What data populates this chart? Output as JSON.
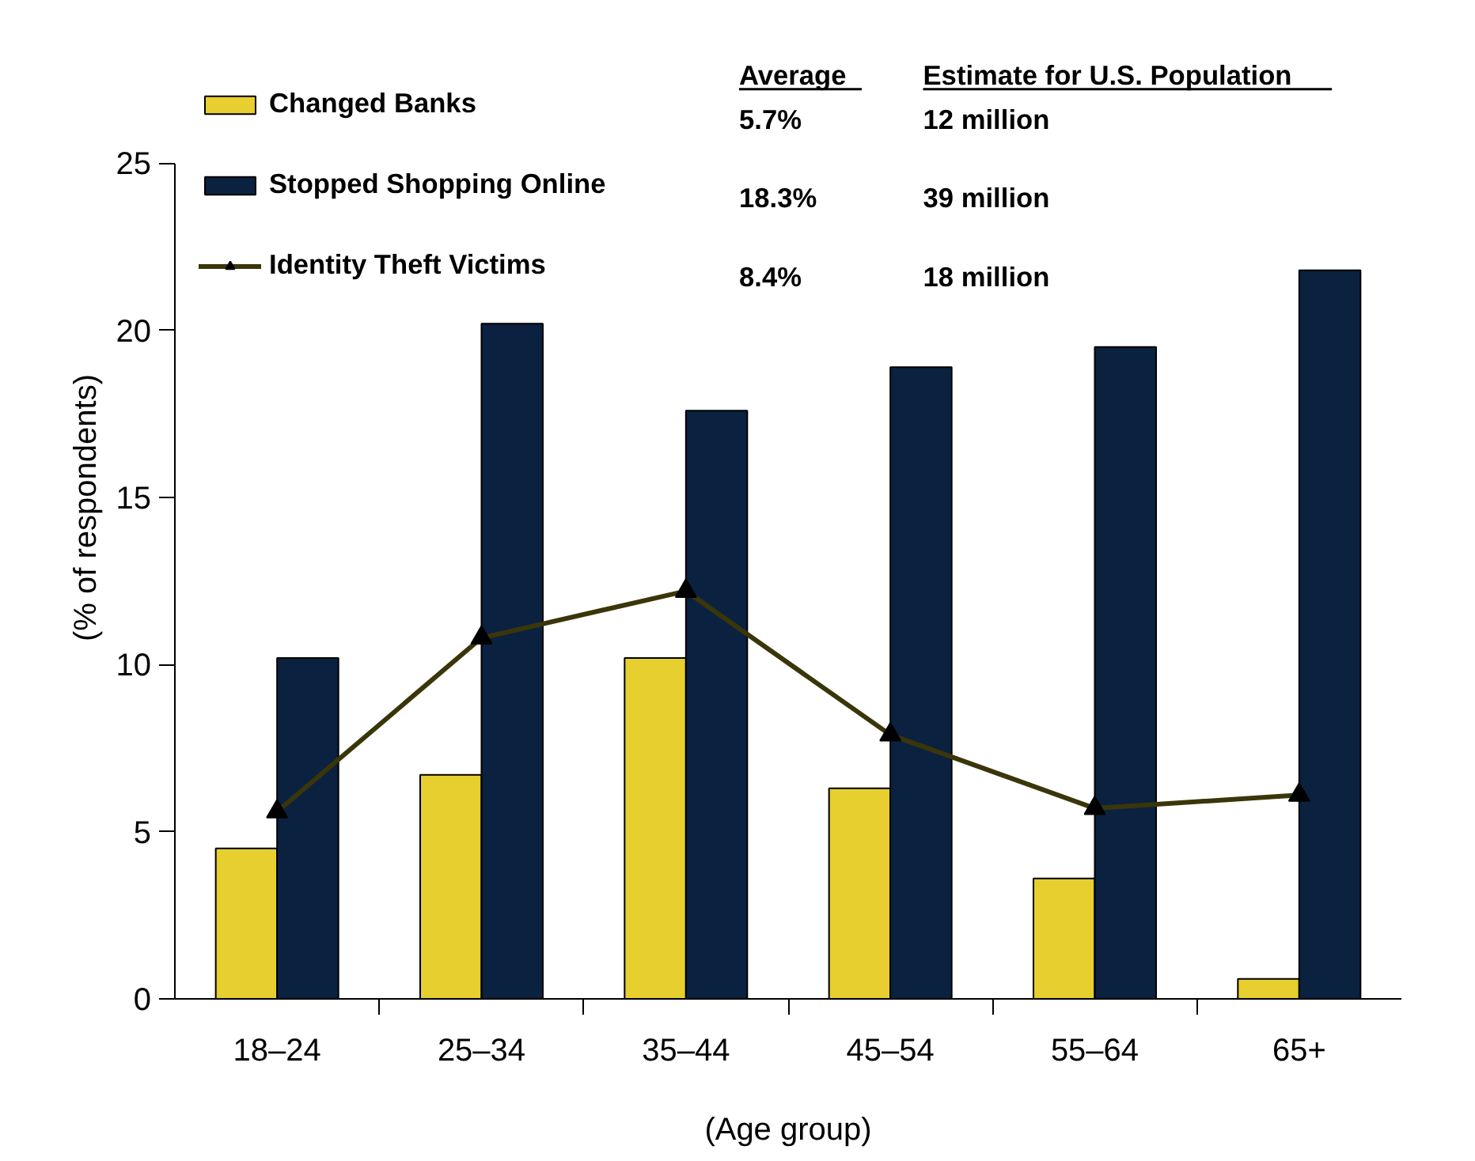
{
  "chart_data": {
    "type": "bar",
    "xlabel": "(Age group)",
    "ylabel": "(% of respondents)",
    "categories": [
      "18–24",
      "25–34",
      "35–44",
      "45–54",
      "55–64",
      "65+"
    ],
    "series": [
      {
        "name": "Changed Banks",
        "color": "#e6cf2e",
        "values": [
          4.5,
          6.7,
          10.2,
          6.3,
          3.6,
          0.6
        ]
      },
      {
        "name": "Stopped Shopping Online",
        "color": "#0b2140",
        "values": [
          10.2,
          20.2,
          17.6,
          18.9,
          19.5,
          21.8
        ]
      },
      {
        "name": "Identity Theft Victims",
        "type": "line",
        "color": "#3a360a",
        "marker": "triangle",
        "values": [
          5.6,
          10.8,
          12.2,
          7.9,
          5.7,
          6.1
        ]
      }
    ],
    "ylim": [
      0,
      25
    ],
    "yticks": [
      0,
      5,
      10,
      15,
      20,
      25
    ],
    "grid": false,
    "legend": "top left",
    "annotations": [
      "Average",
      "Estimate for U.S. Population",
      "5.7%",
      "12 million",
      "18.3%",
      "39 million",
      "8.4%",
      "18 million"
    ]
  }
}
